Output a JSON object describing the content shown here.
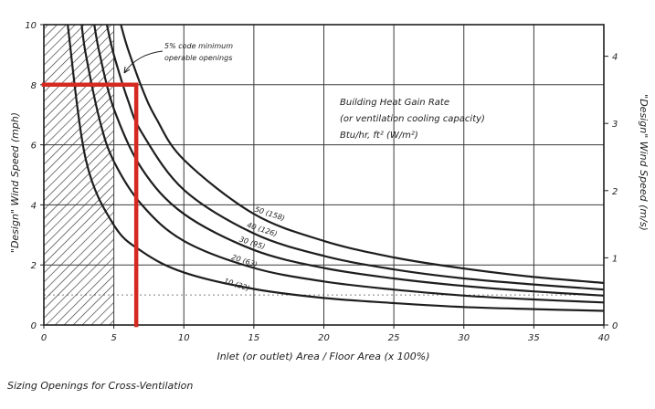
{
  "chart_data": {
    "type": "line",
    "title": "",
    "caption": "Sizing Openings for Cross-Ventilation",
    "xlabel": "Inlet (or outlet) Area / Floor Area (x 100%)",
    "ylabel_left": "\"Design\" Wind Speed (mph)",
    "ylabel_right": "\"Design\" Wind Speed (m/s)",
    "xlim": [
      0,
      40
    ],
    "ylim": [
      0,
      10
    ],
    "ylim_right": [
      0,
      4.47
    ],
    "x_ticks": [
      "0",
      "5",
      "10",
      "15",
      "20",
      "25",
      "30",
      "35",
      "40"
    ],
    "y_ticks": [
      "0",
      "2",
      "4",
      "6",
      "8",
      "10"
    ],
    "y_ticks_right": [
      "0",
      "1",
      "2",
      "3",
      "4"
    ],
    "grid": true,
    "shaded_region": {
      "x_range": [
        0,
        5
      ],
      "label_lines": [
        "5% code minimum",
        "operable openings"
      ]
    },
    "legend_title_lines": [
      "Building Heat Gain Rate",
      "(or ventilation cooling capacity)",
      "Btu/hr, ft² (W/m²)"
    ],
    "series": [
      {
        "name": "10 (32)",
        "label": "10 (32)",
        "x": [
          1.7,
          3,
          5,
          7,
          10,
          15,
          20,
          25,
          30,
          35,
          40
        ],
        "y": [
          10,
          5.5,
          3.33,
          2.45,
          1.75,
          1.2,
          0.9,
          0.73,
          0.6,
          0.53,
          0.47
        ]
      },
      {
        "name": "20 (63)",
        "label": "20 (63)",
        "x": [
          2.7,
          3,
          4,
          5,
          7,
          10,
          15,
          20,
          25,
          30,
          35,
          40
        ],
        "y": [
          10,
          9.0,
          6.8,
          5.45,
          4.0,
          2.8,
          1.9,
          1.45,
          1.18,
          0.98,
          0.85,
          0.75
        ]
      },
      {
        "name": "30 (95)",
        "label": "30 (95)",
        "x": [
          3.6,
          4,
          5,
          7,
          10,
          15,
          20,
          25,
          30,
          35,
          40
        ],
        "y": [
          10,
          9.0,
          7.2,
          5.2,
          3.7,
          2.5,
          1.9,
          1.55,
          1.3,
          1.12,
          0.98
        ]
      },
      {
        "name": "40 (126)",
        "label": "40 (126)",
        "x": [
          4.5,
          5,
          6,
          7,
          10,
          15,
          20,
          25,
          30,
          35,
          40
        ],
        "y": [
          10,
          9.0,
          7.5,
          6.4,
          4.5,
          3.05,
          2.3,
          1.85,
          1.55,
          1.35,
          1.18
        ]
      },
      {
        "name": "50 (158)",
        "label": "50 (158)",
        "x": [
          5.5,
          6,
          7,
          8,
          10,
          15,
          20,
          25,
          30,
          35,
          40
        ],
        "y": [
          10,
          9.2,
          7.9,
          6.9,
          5.5,
          3.7,
          2.8,
          2.25,
          1.88,
          1.6,
          1.4
        ]
      }
    ],
    "highlight": {
      "color": "#d42a20",
      "horizontal_y": 8,
      "vertical_x": 6.6
    },
    "colors": {
      "ink": "#1e1e1e",
      "grid": "#3a3a3a",
      "highlight": "#d42a20",
      "background": "#ffffff"
    }
  }
}
